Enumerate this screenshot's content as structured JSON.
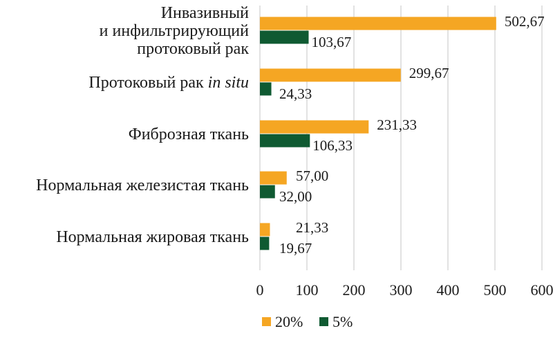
{
  "chart_data": {
    "type": "bar",
    "orientation": "horizontal",
    "categories": [
      [
        "Инвазивный",
        "и инфильтрирующий",
        "протоковый рак"
      ],
      [
        "Протоковый рак ",
        "in situ"
      ],
      [
        "Фиброзная ткань"
      ],
      [
        "Нормальная железистая ткань"
      ],
      [
        "Нормальная жировая ткань"
      ]
    ],
    "series": [
      {
        "name": "20%",
        "color": "#f5a623",
        "values": [
          502.67,
          299.67,
          231.33,
          57.0,
          21.33
        ],
        "labels": [
          "502,67",
          "299,67",
          "231,33",
          "57,00",
          "21,33"
        ]
      },
      {
        "name": "5%",
        "color": "#0f5a32",
        "values": [
          103.67,
          24.33,
          106.33,
          32.0,
          19.67
        ],
        "labels": [
          "103,67",
          "24,33",
          "106,33",
          "32,00",
          "19,67"
        ]
      }
    ],
    "xlim": [
      0,
      600
    ],
    "xticks": [
      "0",
      "100",
      "200",
      "300",
      "400",
      "500",
      "600"
    ],
    "grid": true,
    "legend_position": "bottom-center"
  }
}
